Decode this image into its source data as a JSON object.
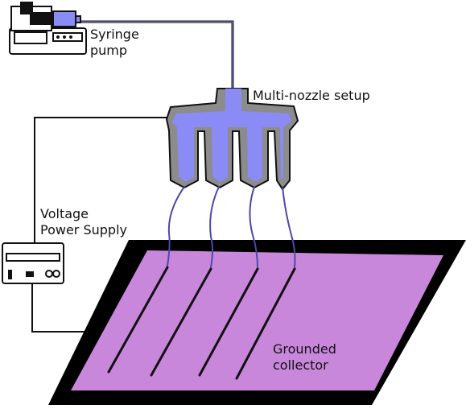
{
  "labels": {
    "syringe_pump": [
      "Syringe",
      "pump"
    ],
    "multi_nozzle": "Multi-nozzle setup",
    "voltage_supply": [
      "Voltage",
      "Power Supply"
    ],
    "grounded_collector": [
      "Grounded",
      "collector"
    ]
  },
  "colors": {
    "fluid": "#8b8bf5",
    "nozzle_body": "#8c8c8c",
    "collector_frame": "#000000",
    "collector_surface": "#c987dc",
    "outline": "#111111",
    "device_body": "#ffffff"
  },
  "nozzle_count": 4
}
